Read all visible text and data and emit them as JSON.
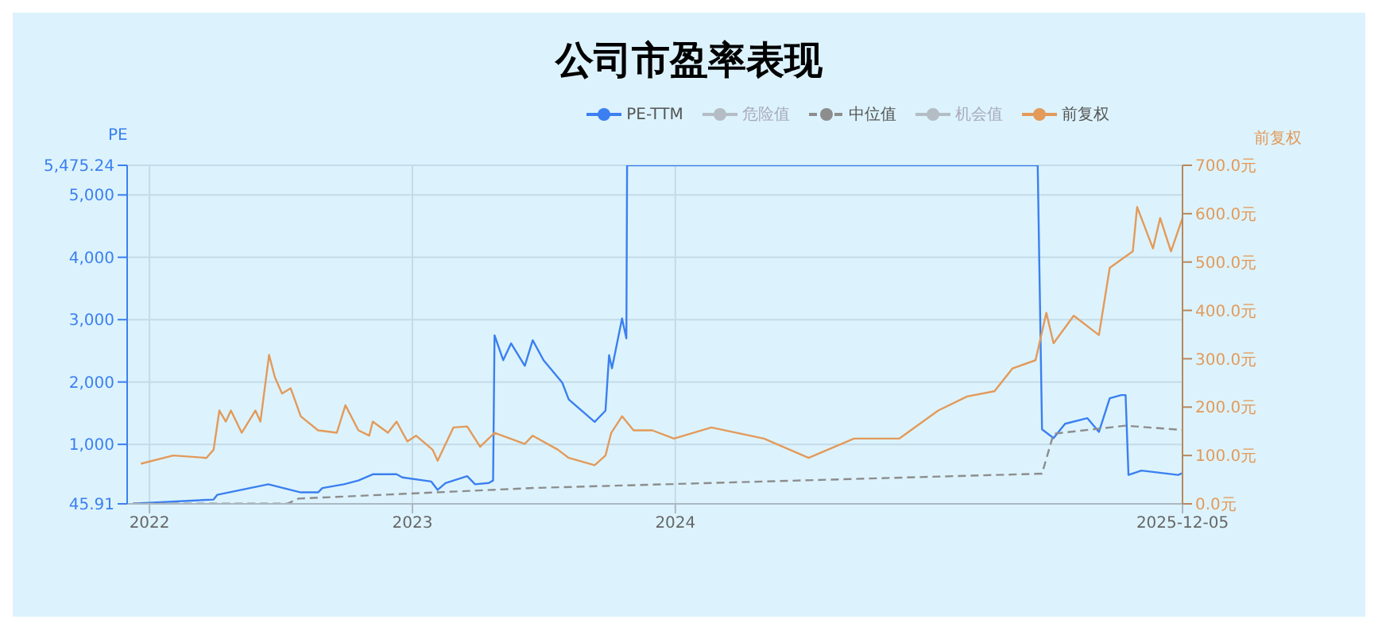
{
  "chart_data": {
    "type": "line",
    "title": "公司市盈率表现",
    "ylabel": "PE",
    "y2label": "前复权",
    "xlim": [
      "2021-12-01",
      "2025-12-05"
    ],
    "xticks": [
      {
        "value": "2022-01-01",
        "label": "2022"
      },
      {
        "value": "2023-01-01",
        "label": "2023"
      },
      {
        "value": "2024-01-01",
        "label": "2024"
      },
      "2025-12-05"
    ],
    "ylim": [
      45.91,
      5475.24
    ],
    "yticks": [
      45.91,
      {
        "value": 1000,
        "label": "1,000"
      },
      {
        "value": 2000,
        "label": "2,000"
      },
      {
        "value": 3000,
        "label": "3,000"
      },
      {
        "value": 4000,
        "label": "4,000"
      },
      {
        "value": 5000,
        "label": "5,000"
      },
      {
        "value": 5475.24,
        "label": "5,475.24"
      }
    ],
    "y2lim": [
      0,
      700
    ],
    "y2ticks": [
      {
        "value": 0,
        "label": "0.0元"
      },
      {
        "value": 100,
        "label": "100.0元"
      },
      {
        "value": 200,
        "label": "200.0元"
      },
      {
        "value": 300,
        "label": "300.0元"
      },
      {
        "value": 400,
        "label": "400.0元"
      },
      {
        "value": 500,
        "label": "500.0元"
      },
      {
        "value": 600,
        "label": "600.0元"
      },
      {
        "value": 700,
        "label": "700.0元"
      }
    ],
    "grid": true,
    "legend": "top",
    "series": [
      {
        "name": "PE-TTM",
        "color": "#3b7ff0",
        "line_style": "solid",
        "x": [
          "2021-12-09",
          "2022-03-31",
          "2022-04-05",
          "2022-06-15",
          "2022-07-30",
          "2022-08-23",
          "2022-08-29",
          "2022-09-28",
          "2022-10-18",
          "2022-11-07",
          "2022-12-10",
          "2022-12-18",
          "2023-01-27",
          "2023-02-05",
          "2023-02-16",
          "2023-03-18",
          "2023-03-29",
          "2023-04-17",
          "2023-04-23",
          "2023-04-25",
          "2023-05-07",
          "2023-05-18",
          "2023-06-06",
          "2023-06-17",
          "2023-07-02",
          "2023-07-28",
          "2023-08-06",
          "2023-09-11",
          "2023-09-26",
          "2023-10-01",
          "2023-10-05",
          "2023-10-19",
          "2023-10-25",
          "2023-10-26",
          "2025-05-18",
          "2025-05-24",
          "2025-06-09",
          "2025-06-25",
          "2025-07-26",
          "2025-08-11",
          "2025-08-26",
          "2025-09-11",
          "2025-09-17",
          "2025-09-21",
          "2025-10-09",
          "2025-11-29",
          "2025-12-05"
        ],
        "values": [
          50,
          115,
          190,
          360,
          230,
          230,
          300,
          360,
          420,
          520,
          520,
          470,
          405,
          270,
          380,
          490,
          360,
          380,
          420,
          2750,
          2350,
          2620,
          2260,
          2670,
          2350,
          1990,
          1720,
          1360,
          1540,
          2430,
          2220,
          3020,
          2700,
          5475.24,
          5475.24,
          1240,
          1100,
          1330,
          1420,
          1200,
          1740,
          1790,
          1790,
          510,
          580,
          510,
          540
        ]
      },
      {
        "name": "危险值",
        "color": "#b4bcc4"
      },
      {
        "name": "中位值",
        "color": "#8d8d8d",
        "line_style": "dashed",
        "x": [
          "2021-12-09",
          "2022-07-12",
          "2022-07-27",
          "2023-06-17",
          "2025-05-24",
          "2025-06-09",
          "2025-09-17",
          "2025-12-05"
        ],
        "values": [
          50,
          50,
          130,
          300,
          530,
          1170,
          1300,
          1230
        ]
      },
      {
        "name": "机会值",
        "color": "#b4bcc4"
      },
      {
        "name": "前复权",
        "color": "#e39a5a",
        "axis": "y2",
        "line_style": "solid",
        "x": [
          "2021-12-20",
          "2022-02-03",
          "2022-03-21",
          "2022-03-31",
          "2022-04-08",
          "2022-04-17",
          "2022-04-24",
          "2022-05-09",
          "2022-05-28",
          "2022-06-04",
          "2022-06-16",
          "2022-06-24",
          "2022-07-04",
          "2022-07-16",
          "2022-07-30",
          "2022-08-23",
          "2022-09-18",
          "2022-09-30",
          "2022-10-18",
          "2022-11-02",
          "2022-11-07",
          "2022-11-28",
          "2022-12-10",
          "2022-12-25",
          "2023-01-06",
          "2023-01-29",
          "2023-02-05",
          "2023-02-27",
          "2023-03-18",
          "2023-04-05",
          "2023-04-25",
          "2023-06-06",
          "2023-06-17",
          "2023-07-22",
          "2023-08-06",
          "2023-09-11",
          "2023-09-26",
          "2023-10-04",
          "2023-10-19",
          "2023-11-04",
          "2023-11-30",
          "2023-12-30",
          "2024-02-20",
          "2024-05-03",
          "2024-07-04",
          "2024-09-05",
          "2024-11-07",
          "2024-12-31",
          "2025-02-09",
          "2025-03-19",
          "2025-04-13",
          "2025-05-15",
          "2025-05-30",
          "2025-06-09",
          "2025-07-07",
          "2025-08-11",
          "2025-08-26",
          "2025-09-27",
          "2025-10-03",
          "2025-10-25",
          "2025-11-04",
          "2025-11-19",
          "2025-12-05"
        ],
        "values": [
          83,
          100,
          95,
          112,
          193,
          170,
          193,
          147,
          193,
          170,
          308,
          262,
          228,
          239,
          181,
          152,
          147,
          204,
          152,
          141,
          170,
          147,
          170,
          129,
          141,
          112,
          89,
          158,
          160,
          118,
          147,
          124,
          141,
          112,
          95,
          80,
          100,
          147,
          181,
          152,
          152,
          135,
          158,
          135,
          95,
          135,
          135,
          193,
          222,
          233,
          280,
          297,
          395,
          332,
          389,
          349,
          488,
          522,
          614,
          528,
          591,
          522,
          591
        ]
      }
    ]
  }
}
